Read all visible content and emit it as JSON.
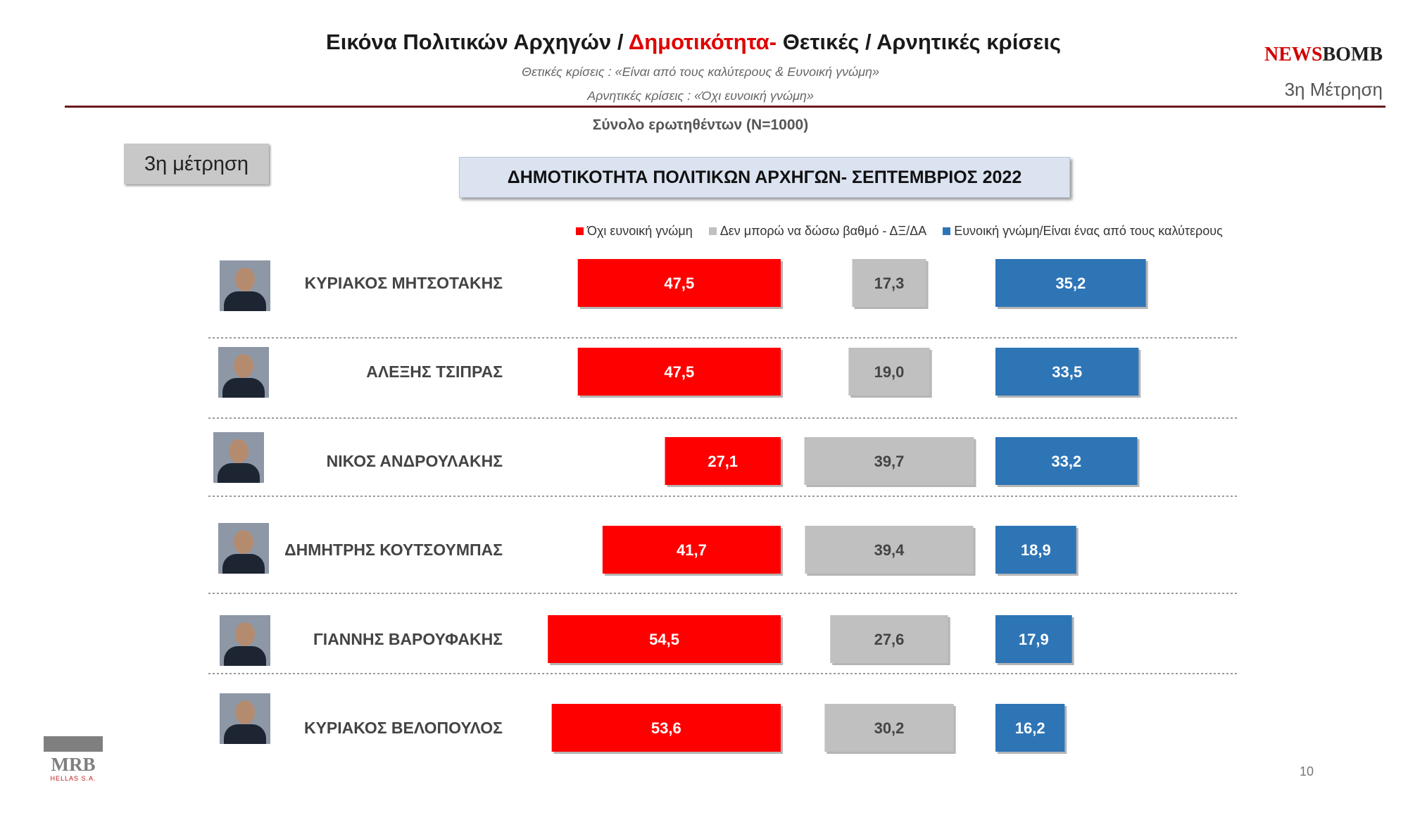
{
  "header": {
    "title_part1": "Εικόνα Πολιτικών Αρχηγών  / ",
    "title_part2": "Δημοτικότητα- ",
    "title_part3": "Θετικές / Αρνητικές κρίσεις",
    "subtitle_positive": "Θετικές κρίσεις : «Είναι από τους καλύτερους &  Ευνοική γνώμη»",
    "subtitle_negative": "Αρνητικές κρίσεις : «Όχι ευνοική γνώμη»",
    "base": "Σύνολο ερωτηθέντων (Ν=1000)"
  },
  "brand": {
    "logo_part1": "NEWS",
    "logo_part2": "BOMB",
    "measurement": "3η Μέτρηση"
  },
  "measurement_box": "3η μέτρηση",
  "chart_data": {
    "type": "bar",
    "title": "ΔΗΜΟΤΙΚΟΤΗΤΑ ΠΟΛΙΤΙΚΩΝ ΑΡΧΗΓΩΝ- ΣΕΠΤΕΜΒΡΙΟΣ 2022",
    "categories": [
      "ΚΥΡΙΑΚΟΣ ΜΗΤΣΟΤΑΚΗΣ",
      "ΑΛΕΞΗΣ ΤΣΙΠΡΑΣ",
      "ΝΙΚΟΣ ΑΝΔΡΟΥΛΑΚΗΣ",
      "ΔΗΜΗΤΡΗΣ ΚΟΥΤΣΟΥΜΠΑΣ",
      "ΓΙΑΝΝΗΣ ΒΑΡΟΥΦΑΚΗΣ",
      "ΚΥΡΙΑΚΟΣ ΒΕΛΟΠΟΥΛΟΣ"
    ],
    "series": [
      {
        "name": "Όχι ευνοική γνώμη",
        "color": "#ff0000",
        "values": [
          47.5,
          47.5,
          27.1,
          41.7,
          54.5,
          53.6
        ],
        "labels": [
          "47,5",
          "47,5",
          "27,1",
          "41,7",
          "54,5",
          "53,6"
        ]
      },
      {
        "name": "Δεν μπορώ να δώσω βαθμό - ΔΞ/ΔΑ",
        "color": "#c0c0c0",
        "values": [
          17.3,
          19.0,
          39.7,
          39.4,
          27.6,
          30.2
        ],
        "labels": [
          "17,3",
          "19,0",
          "39,7",
          "39,4",
          "27,6",
          "30,2"
        ]
      },
      {
        "name": "Ευνοική γνώμη/Είναι ένας από τους καλύτερους",
        "color": "#2e75b6",
        "values": [
          35.2,
          33.5,
          33.2,
          18.9,
          17.9,
          16.2
        ],
        "labels": [
          "35,2",
          "33,5",
          "33,2",
          "18,9",
          "17,9",
          "16,2"
        ]
      }
    ],
    "legend_position": "top"
  },
  "footer": {
    "mrb_logo": "MRB",
    "mrb_sub": "HELLAS S.A.",
    "page_number": "10"
  }
}
